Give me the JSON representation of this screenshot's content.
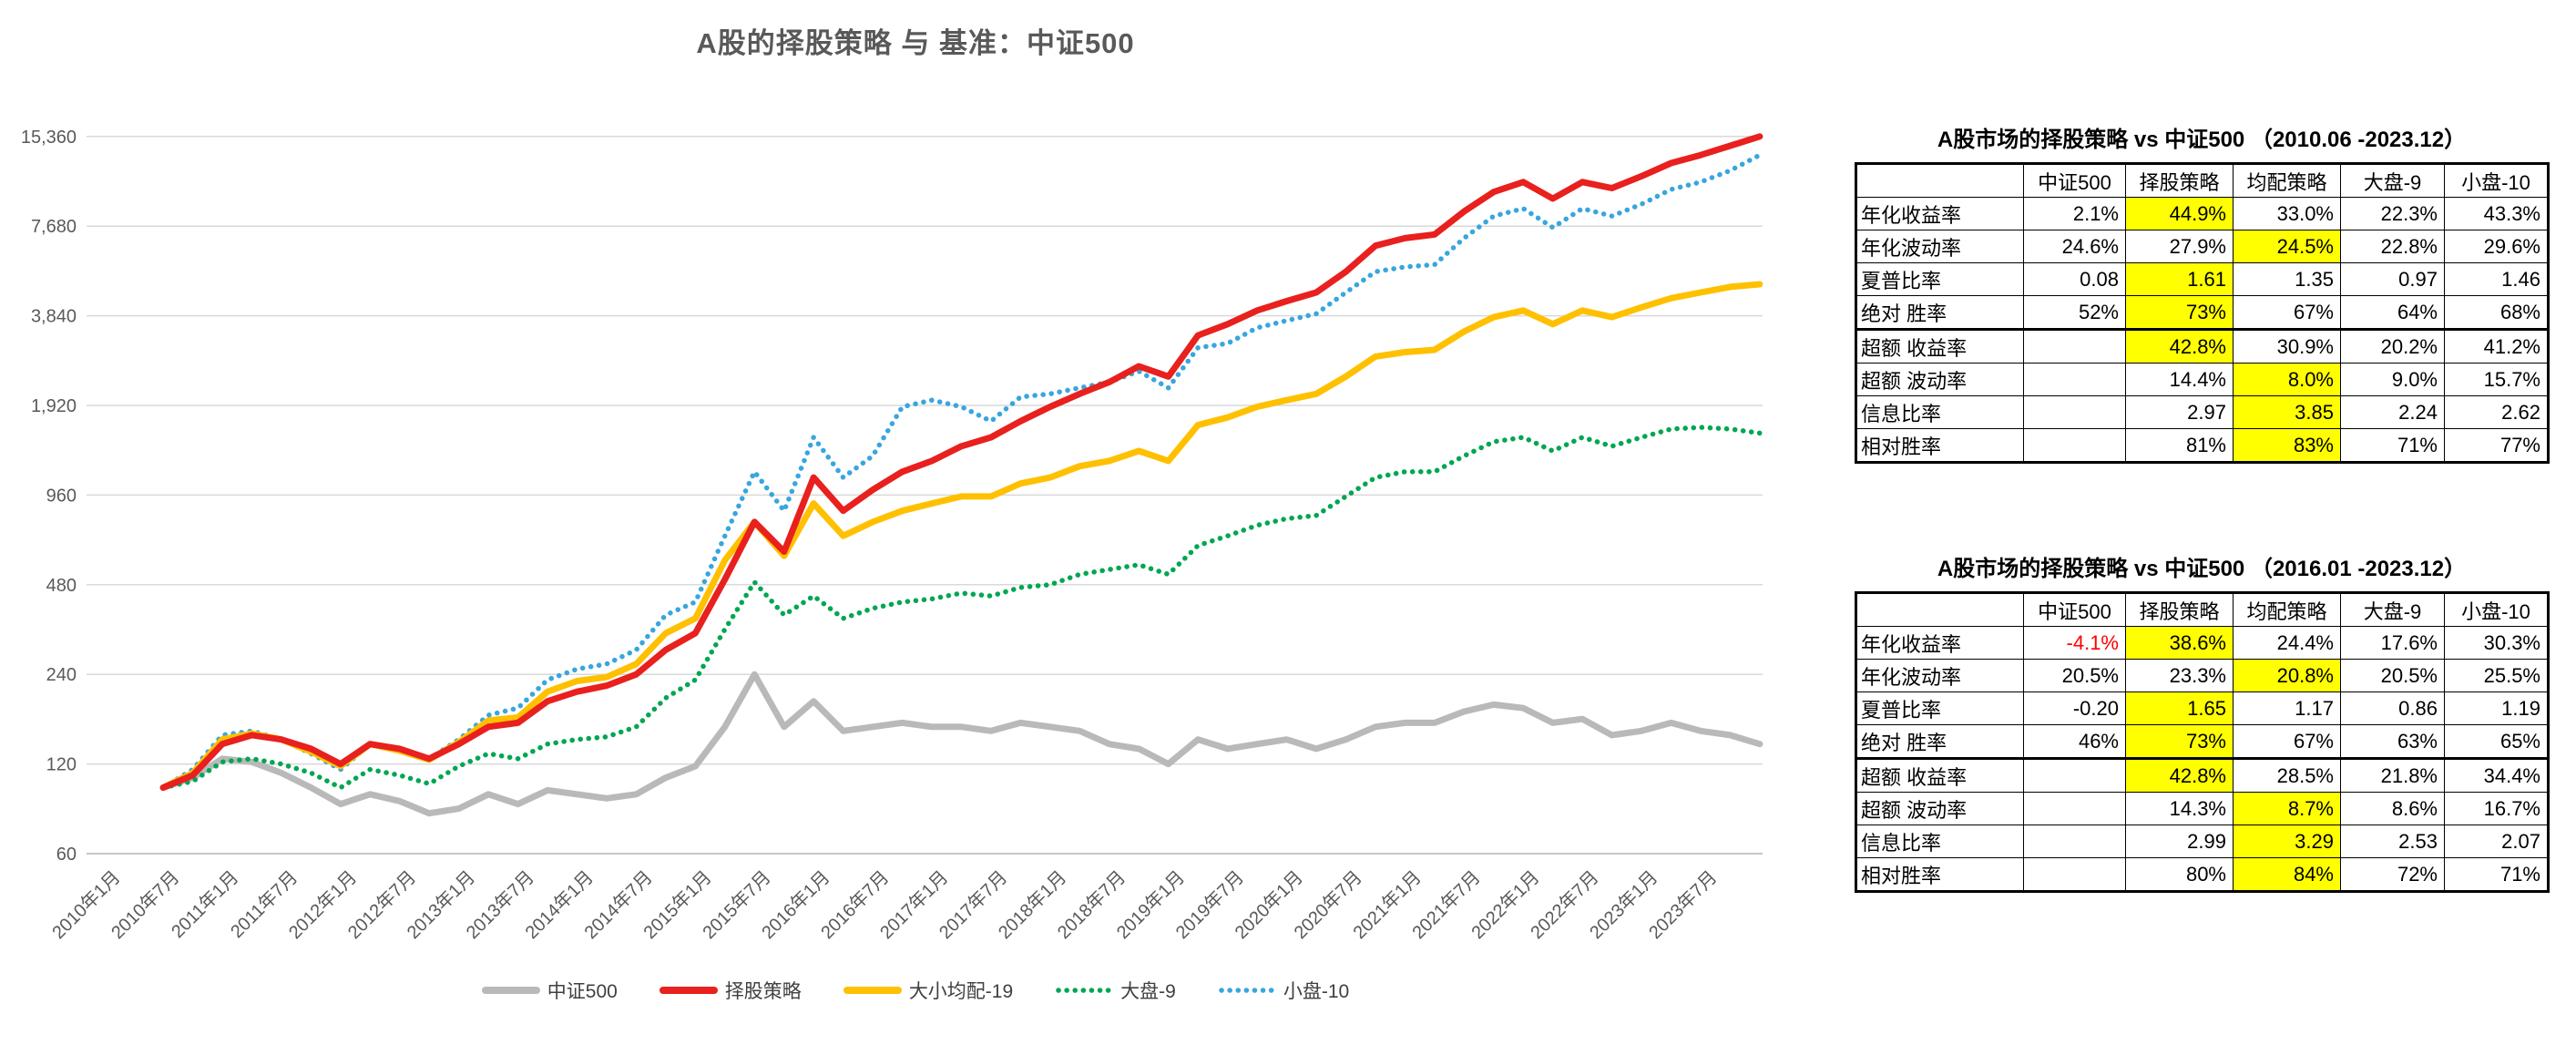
{
  "chart": {
    "title": "A股的择股策略 与 基准：中证500"
  },
  "chart_data": {
    "type": "line",
    "yscale": "log2",
    "ylim": [
      60,
      15360
    ],
    "grid": true,
    "legend_position": "bottom",
    "xlabel": "",
    "ylabel": "",
    "y_tick_labels": [
      "15,360",
      "7,680",
      "3,840",
      "1,920",
      "960",
      "480",
      "240",
      "120",
      "60"
    ],
    "y_tick_values": [
      15360,
      7680,
      3840,
      1920,
      960,
      480,
      240,
      120,
      60
    ],
    "x_tick_labels": [
      "2010年1月",
      "2010年7月",
      "2011年1月",
      "2011年7月",
      "2012年1月",
      "2012年7月",
      "2013年1月",
      "2013年7月",
      "2014年1月",
      "2014年7月",
      "2015年1月",
      "2015年7月",
      "2016年1月",
      "2016年7月",
      "2017年1月",
      "2017年7月",
      "2018年1月",
      "2018年7月",
      "2019年1月",
      "2019年7月",
      "2020年1月",
      "2020年7月",
      "2021年1月",
      "2021年7月",
      "2022年1月",
      "2022年7月",
      "2023年1月",
      "2023年7月"
    ],
    "x": [
      "2010-06",
      "2010-09",
      "2010-12",
      "2011-03",
      "2011-06",
      "2011-09",
      "2011-12",
      "2012-03",
      "2012-06",
      "2012-09",
      "2012-12",
      "2013-03",
      "2013-06",
      "2013-09",
      "2013-12",
      "2014-03",
      "2014-06",
      "2014-09",
      "2014-12",
      "2015-03",
      "2015-06",
      "2015-09",
      "2015-12",
      "2016-03",
      "2016-06",
      "2016-09",
      "2016-12",
      "2017-03",
      "2017-06",
      "2017-09",
      "2017-12",
      "2018-03",
      "2018-06",
      "2018-09",
      "2018-12",
      "2019-03",
      "2019-06",
      "2019-09",
      "2019-12",
      "2020-03",
      "2020-06",
      "2020-09",
      "2020-12",
      "2021-03",
      "2021-06",
      "2021-09",
      "2021-12",
      "2022-03",
      "2022-06",
      "2022-09",
      "2022-12",
      "2023-03",
      "2023-06",
      "2023-09",
      "2023-12"
    ],
    "series": [
      {
        "id": "csi500",
        "name": "中证500",
        "color": "#b9b9b9",
        "style": "solid",
        "values": [
          100,
          108,
          125,
          122,
          112,
          100,
          88,
          95,
          90,
          82,
          85,
          95,
          88,
          98,
          95,
          92,
          95,
          108,
          118,
          160,
          240,
          160,
          195,
          155,
          160,
          165,
          160,
          160,
          155,
          165,
          160,
          155,
          140,
          135,
          120,
          145,
          135,
          140,
          145,
          135,
          145,
          160,
          165,
          165,
          180,
          190,
          185,
          165,
          170,
          150,
          155,
          165,
          155,
          150,
          140
        ]
      },
      {
        "id": "stock-selection",
        "name": "择股策略",
        "color": "#e8201e",
        "style": "solid",
        "values": [
          100,
          110,
          140,
          150,
          145,
          135,
          120,
          140,
          135,
          125,
          140,
          160,
          165,
          195,
          210,
          220,
          240,
          290,
          330,
          500,
          780,
          620,
          1100,
          850,
          1000,
          1150,
          1250,
          1400,
          1500,
          1700,
          1900,
          2100,
          2300,
          2600,
          2400,
          3300,
          3600,
          4000,
          4300,
          4600,
          5400,
          6600,
          7000,
          7200,
          8600,
          10000,
          10800,
          9500,
          10800,
          10300,
          11300,
          12500,
          13300,
          14300,
          15360
        ]
      },
      {
        "id": "size-blend-19",
        "name": "大小均配-19",
        "color": "#ffc000",
        "style": "solid",
        "values": [
          100,
          112,
          145,
          152,
          145,
          132,
          118,
          140,
          133,
          124,
          142,
          168,
          172,
          210,
          228,
          235,
          260,
          330,
          370,
          580,
          780,
          600,
          900,
          700,
          780,
          850,
          900,
          950,
          950,
          1050,
          1100,
          1200,
          1250,
          1350,
          1250,
          1650,
          1750,
          1900,
          2000,
          2100,
          2400,
          2800,
          2900,
          2950,
          3400,
          3800,
          4000,
          3600,
          4000,
          3800,
          4100,
          4400,
          4600,
          4800,
          4900
        ]
      },
      {
        "id": "large-cap-9",
        "name": "大盘-9",
        "color": "#00a651",
        "style": "dotted",
        "values": [
          100,
          105,
          122,
          125,
          120,
          112,
          100,
          115,
          110,
          103,
          118,
          130,
          125,
          140,
          145,
          148,
          160,
          200,
          230,
          340,
          490,
          380,
          440,
          370,
          400,
          420,
          430,
          450,
          440,
          470,
          480,
          520,
          540,
          560,
          520,
          650,
          700,
          760,
          800,
          820,
          950,
          1100,
          1150,
          1150,
          1300,
          1450,
          1500,
          1350,
          1500,
          1400,
          1500,
          1600,
          1620,
          1600,
          1550
        ]
      },
      {
        "id": "small-cap-10",
        "name": "小盘-10",
        "color": "#38a6de",
        "style": "dotted",
        "values": [
          100,
          115,
          150,
          155,
          145,
          130,
          115,
          140,
          135,
          125,
          145,
          175,
          185,
          230,
          250,
          260,
          290,
          380,
          420,
          700,
          1150,
          850,
          1500,
          1100,
          1300,
          1900,
          2000,
          1900,
          1700,
          2050,
          2100,
          2200,
          2300,
          2500,
          2200,
          3000,
          3100,
          3500,
          3700,
          3900,
          4600,
          5400,
          5600,
          5700,
          7000,
          8300,
          8800,
          7600,
          8800,
          8300,
          9100,
          10200,
          10800,
          11800,
          13300
        ]
      }
    ]
  },
  "tables": [
    {
      "title": "A股市场的择股策略 vs 中证500 （2010.06 -2023.12）",
      "columns": [
        "",
        "中证500",
        "择股策略",
        "均配策略",
        "大盘-9",
        "小盘-10"
      ],
      "rows": [
        {
          "label": "年化收益率",
          "values": [
            "2.1%",
            "44.9%",
            "33.0%",
            "22.3%",
            "43.3%"
          ],
          "highlight": 1
        },
        {
          "label": "年化波动率",
          "values": [
            "24.6%",
            "27.9%",
            "24.5%",
            "22.8%",
            "29.6%"
          ],
          "highlight": 2
        },
        {
          "label": "夏普比率",
          "values": [
            "0.08",
            "1.61",
            "1.35",
            "0.97",
            "1.46"
          ],
          "highlight": 1
        },
        {
          "label": "绝对 胜率",
          "values": [
            "52%",
            "73%",
            "67%",
            "64%",
            "68%"
          ],
          "highlight": 1,
          "thick_bottom": true
        },
        {
          "label": "超额 收益率",
          "values": [
            "",
            "42.8%",
            "30.9%",
            "20.2%",
            "41.2%"
          ],
          "highlight": 1
        },
        {
          "label": "超额 波动率",
          "values": [
            "",
            "14.4%",
            "8.0%",
            "9.0%",
            "15.7%"
          ],
          "highlight": 2
        },
        {
          "label": "信息比率",
          "values": [
            "",
            "2.97",
            "3.85",
            "2.24",
            "2.62"
          ],
          "highlight": 2
        },
        {
          "label": "相对胜率",
          "values": [
            "",
            "81%",
            "83%",
            "71%",
            "77%"
          ],
          "highlight": 2
        }
      ]
    },
    {
      "title": "A股市场的择股策略 vs 中证500 （2016.01 -2023.12）",
      "columns": [
        "",
        "中证500",
        "择股策略",
        "均配策略",
        "大盘-9",
        "小盘-10"
      ],
      "rows": [
        {
          "label": "年化收益率",
          "values": [
            "-4.1%",
            "38.6%",
            "24.4%",
            "17.6%",
            "30.3%"
          ],
          "highlight": 1,
          "negative": [
            0
          ]
        },
        {
          "label": "年化波动率",
          "values": [
            "20.5%",
            "23.3%",
            "20.8%",
            "20.5%",
            "25.5%"
          ],
          "highlight": 2
        },
        {
          "label": "夏普比率",
          "values": [
            "-0.20",
            "1.65",
            "1.17",
            "0.86",
            "1.19"
          ],
          "highlight": 1
        },
        {
          "label": "绝对 胜率",
          "values": [
            "46%",
            "73%",
            "67%",
            "63%",
            "65%"
          ],
          "highlight": 1,
          "thick_bottom": true
        },
        {
          "label": "超额 收益率",
          "values": [
            "",
            "42.8%",
            "28.5%",
            "21.8%",
            "34.4%"
          ],
          "highlight": 1
        },
        {
          "label": "超额 波动率",
          "values": [
            "",
            "14.3%",
            "8.7%",
            "8.6%",
            "16.7%"
          ],
          "highlight": 2
        },
        {
          "label": "信息比率",
          "values": [
            "",
            "2.99",
            "3.29",
            "2.53",
            "2.07"
          ],
          "highlight": 2
        },
        {
          "label": "相对胜率",
          "values": [
            "",
            "80%",
            "84%",
            "72%",
            "71%"
          ],
          "highlight": 2
        }
      ]
    }
  ]
}
